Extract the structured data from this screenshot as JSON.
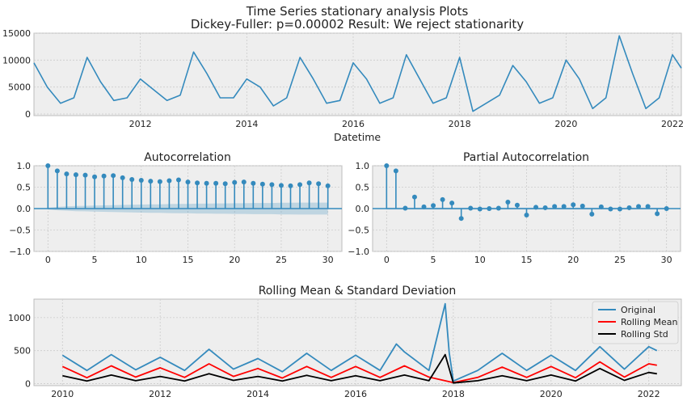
{
  "figure": {
    "title_line1": "Time Series stationary analysis Plots",
    "title_line2": "Dickey-Fuller: p=0.00002 Result: We reject stationarity"
  },
  "colors": {
    "plot_bg": "#eeeeee",
    "grid": "#cbcbcb",
    "series_blue": "#348ABD",
    "rolling_mean": "#ff0000",
    "rolling_std": "#000000"
  },
  "chart_data": [
    {
      "type": "line",
      "xlabel": "Datetime",
      "x_ticks": [
        "2012",
        "2014",
        "2016",
        "2018",
        "2020",
        "2022"
      ],
      "y_ticks": [
        "0",
        "5000",
        "10000",
        "15000"
      ],
      "xlim": [
        "2010-01",
        "2022-03"
      ],
      "ylim": [
        -300,
        15000
      ],
      "grid": true,
      "series": [
        {
          "x": [
            "2010-01",
            "2010-04",
            "2010-07",
            "2010-10",
            "2011-01",
            "2011-04",
            "2011-07",
            "2011-10",
            "2012-01",
            "2012-04",
            "2012-07",
            "2012-10",
            "2013-01",
            "2013-04",
            "2013-07",
            "2013-10",
            "2014-01",
            "2014-04",
            "2014-07",
            "2014-10",
            "2015-01",
            "2015-04",
            "2015-07",
            "2015-10",
            "2016-01",
            "2016-04",
            "2016-07",
            "2016-10",
            "2017-01",
            "2017-04",
            "2017-07",
            "2017-10",
            "2018-01",
            "2018-04",
            "2018-07",
            "2018-10",
            "2019-01",
            "2019-04",
            "2019-07",
            "2019-10",
            "2020-01",
            "2020-04",
            "2020-07",
            "2020-10",
            "2021-01",
            "2021-04",
            "2021-07",
            "2021-10",
            "2022-01",
            "2022-03"
          ],
          "values": [
            9500,
            5000,
            2000,
            3000,
            10500,
            6000,
            2500,
            3000,
            6500,
            4500,
            2500,
            3500,
            11500,
            7500,
            3000,
            3000,
            6500,
            5000,
            1500,
            3000,
            10500,
            6500,
            2000,
            2500,
            9500,
            6500,
            2000,
            3000,
            11000,
            6500,
            2000,
            3000,
            10500,
            500,
            2000,
            3500,
            9000,
            6000,
            2000,
            3000,
            10000,
            6500,
            1000,
            3000,
            14500,
            7500,
            1000,
            3000,
            11000,
            8500
          ]
        }
      ]
    },
    {
      "type": "bar",
      "title": "Autocorrelation",
      "x_ticks": [
        "0",
        "5",
        "10",
        "15",
        "20",
        "25",
        "30"
      ],
      "y_ticks": [
        "−1.0",
        "−0.5",
        "0.0",
        "0.5",
        "1.0"
      ],
      "xlim": [
        -1.5,
        31.5
      ],
      "ylim": [
        -1.0,
        1.0
      ],
      "grid": true,
      "lags": [
        0,
        1,
        2,
        3,
        4,
        5,
        6,
        7,
        8,
        9,
        10,
        11,
        12,
        13,
        14,
        15,
        16,
        17,
        18,
        19,
        20,
        21,
        22,
        23,
        24,
        25,
        26,
        27,
        28,
        29,
        30
      ],
      "values": [
        1.0,
        0.88,
        0.81,
        0.79,
        0.78,
        0.74,
        0.76,
        0.77,
        0.72,
        0.68,
        0.66,
        0.64,
        0.63,
        0.65,
        0.67,
        0.62,
        0.6,
        0.59,
        0.59,
        0.58,
        0.61,
        0.62,
        0.59,
        0.57,
        0.56,
        0.54,
        0.53,
        0.56,
        0.6,
        0.58,
        0.53
      ],
      "confidence_band": [
        0.02,
        0.04,
        0.05,
        0.06,
        0.065,
        0.07,
        0.075,
        0.08,
        0.085,
        0.09,
        0.095,
        0.1,
        0.1,
        0.105,
        0.11,
        0.11,
        0.115,
        0.115,
        0.12,
        0.12,
        0.125,
        0.125,
        0.13,
        0.13,
        0.13,
        0.135,
        0.135,
        0.14,
        0.14,
        0.14,
        0.14
      ]
    },
    {
      "type": "bar",
      "title": "Partial Autocorrelation",
      "x_ticks": [
        "0",
        "5",
        "10",
        "15",
        "20",
        "25",
        "30"
      ],
      "y_ticks": [
        "−1.0",
        "−0.5",
        "0.0",
        "0.5",
        "1.0"
      ],
      "xlim": [
        -1.5,
        31.5
      ],
      "ylim": [
        -1.0,
        1.0
      ],
      "grid": true,
      "lags": [
        0,
        1,
        2,
        3,
        4,
        5,
        6,
        7,
        8,
        9,
        10,
        11,
        12,
        13,
        14,
        15,
        16,
        17,
        18,
        19,
        20,
        21,
        22,
        23,
        24,
        25,
        26,
        27,
        28,
        29,
        30
      ],
      "values": [
        1.0,
        0.88,
        0.01,
        0.27,
        0.04,
        0.07,
        0.21,
        0.13,
        -0.23,
        0.01,
        -0.01,
        0.0,
        0.01,
        0.15,
        0.08,
        -0.15,
        0.03,
        0.02,
        0.05,
        0.05,
        0.09,
        0.06,
        -0.13,
        0.04,
        -0.01,
        -0.01,
        0.02,
        0.05,
        0.05,
        -0.12,
        0.0
      ],
      "confidence_band": 0.02
    },
    {
      "type": "line",
      "title": "Rolling Mean & Standard Deviation",
      "x_ticks": [
        "2010",
        "2012",
        "2014",
        "2016",
        "2018",
        "2020",
        "2022"
      ],
      "y_ticks": [
        "0",
        "500",
        "1000"
      ],
      "xlim": [
        "2009-06",
        "2022-09"
      ],
      "ylim": [
        -30,
        1280
      ],
      "grid": true,
      "legend_position": "right",
      "series": [
        {
          "name": "Original",
          "x": [
            "2010-01",
            "2010-07",
            "2011-01",
            "2011-07",
            "2012-01",
            "2012-07",
            "2013-01",
            "2013-07",
            "2014-01",
            "2014-07",
            "2015-01",
            "2015-07",
            "2016-01",
            "2016-07",
            "2016-11",
            "2017-01",
            "2017-07",
            "2017-11",
            "2017-12",
            "2018-01",
            "2018-07",
            "2019-01",
            "2019-07",
            "2020-01",
            "2020-07",
            "2021-01",
            "2021-07",
            "2022-01",
            "2022-03"
          ],
          "values": [
            430,
            200,
            440,
            210,
            400,
            200,
            520,
            220,
            380,
            180,
            460,
            200,
            430,
            200,
            600,
            480,
            200,
            1210,
            470,
            40,
            200,
            460,
            200,
            430,
            200,
            560,
            220,
            560,
            500
          ]
        },
        {
          "name": "Rolling Mean",
          "x": [
            "2010-01",
            "2010-07",
            "2011-01",
            "2011-07",
            "2012-01",
            "2012-07",
            "2013-01",
            "2013-07",
            "2014-01",
            "2014-07",
            "2015-01",
            "2015-07",
            "2016-01",
            "2016-07",
            "2017-01",
            "2017-07",
            "2018-01",
            "2018-07",
            "2019-01",
            "2019-07",
            "2020-01",
            "2020-07",
            "2021-01",
            "2021-07",
            "2022-01",
            "2022-03"
          ],
          "values": [
            260,
            90,
            270,
            100,
            240,
            95,
            300,
            110,
            230,
            85,
            260,
            95,
            260,
            95,
            270,
            100,
            15,
            95,
            250,
            95,
            260,
            90,
            330,
            100,
            300,
            280
          ]
        },
        {
          "name": "Rolling Std",
          "x": [
            "2010-01",
            "2010-07",
            "2011-01",
            "2011-07",
            "2012-01",
            "2012-07",
            "2013-01",
            "2013-07",
            "2014-01",
            "2014-07",
            "2015-01",
            "2015-07",
            "2016-01",
            "2016-07",
            "2017-01",
            "2017-07",
            "2017-11",
            "2018-01",
            "2018-07",
            "2019-01",
            "2019-07",
            "2020-01",
            "2020-07",
            "2021-01",
            "2021-07",
            "2022-01",
            "2022-03"
          ],
          "values": [
            120,
            40,
            130,
            45,
            110,
            40,
            150,
            50,
            110,
            40,
            125,
            45,
            120,
            45,
            130,
            45,
            440,
            10,
            45,
            120,
            45,
            130,
            40,
            230,
            50,
            170,
            150
          ]
        }
      ]
    }
  ]
}
